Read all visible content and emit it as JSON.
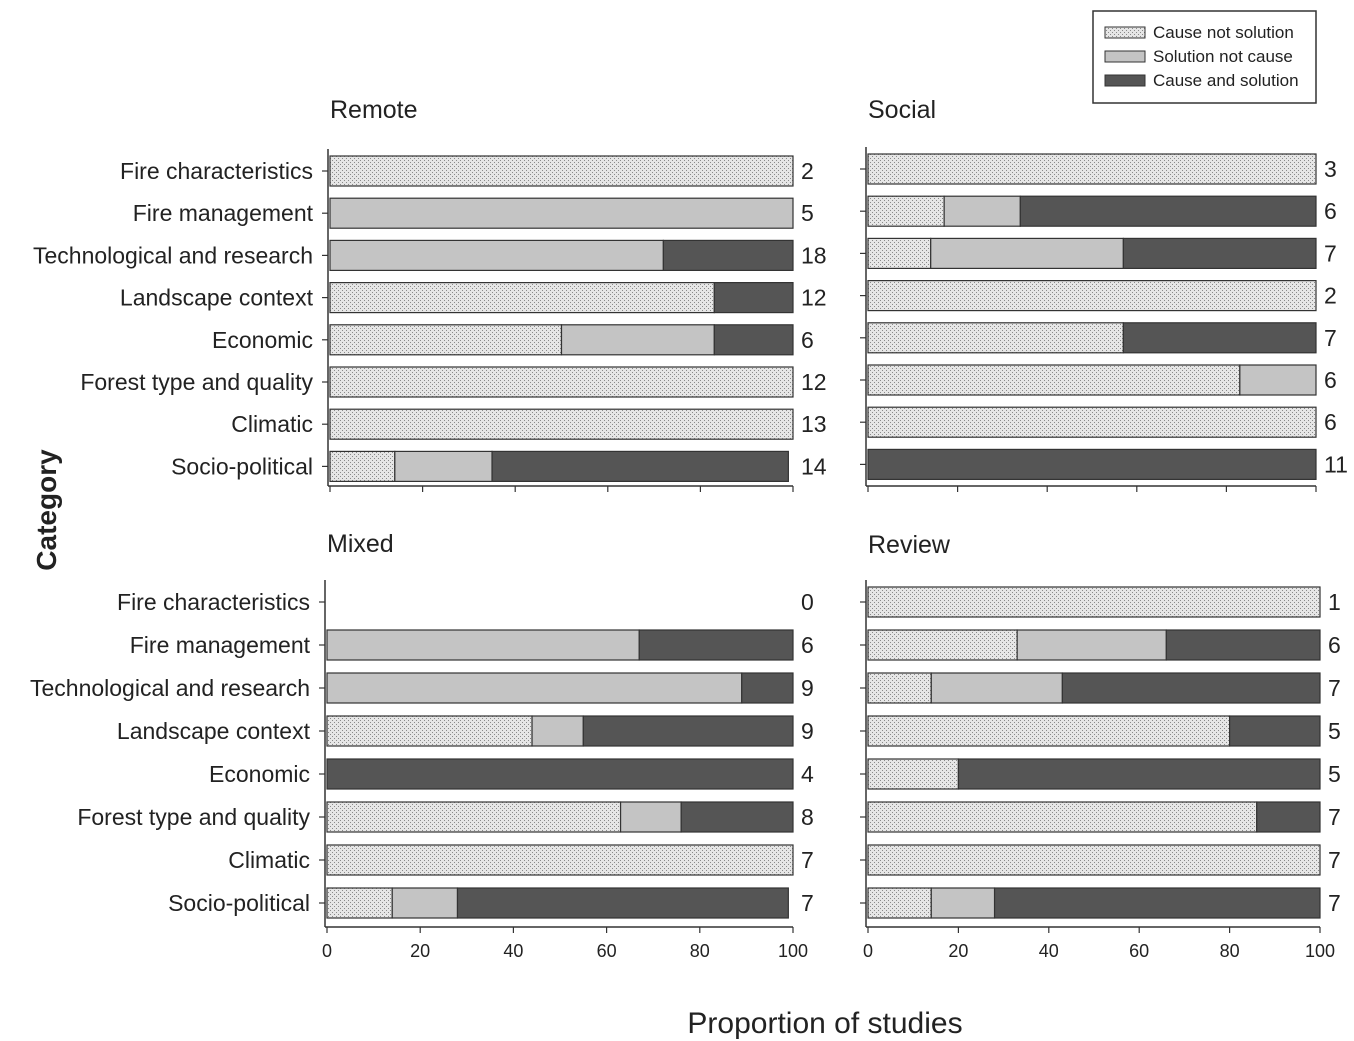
{
  "chart_data": {
    "type": "bar",
    "orientation": "horizontal",
    "stacked": true,
    "ylabel": "Category",
    "xlabel": "Proportion of studies",
    "xlim": [
      0,
      100
    ],
    "xticks": [
      0,
      20,
      40,
      60,
      80,
      100
    ],
    "legend": {
      "placement": "top-right",
      "items": [
        {
          "name": "Cause not solution",
          "color": "#e4e4e4",
          "pattern": "dotted"
        },
        {
          "name": "Solution not cause",
          "color": "#c4c4c4",
          "pattern": "solid"
        },
        {
          "name": "Cause and solution",
          "color": "#555555",
          "pattern": "solid"
        }
      ]
    },
    "categories": [
      "Fire characteristics",
      "Fire management",
      "Technological and research",
      "Landscape context",
      "Economic",
      "Forest type and quality",
      "Climatic",
      "Socio-political"
    ],
    "panels": [
      {
        "title": "Remote",
        "series": [
          {
            "name": "Cause not solution",
            "values": [
              100,
              0,
              0,
              83,
              50,
              100,
              100,
              14
            ]
          },
          {
            "name": "Solution not cause",
            "values": [
              0,
              100,
              72,
              0,
              33,
              0,
              0,
              21
            ]
          },
          {
            "name": "Cause and solution",
            "values": [
              0,
              0,
              28,
              17,
              17,
              0,
              0,
              64
            ]
          }
        ],
        "counts": [
          "2",
          "5",
          "18",
          "12",
          "6",
          "12",
          "13",
          "14"
        ]
      },
      {
        "title": "Social",
        "series": [
          {
            "name": "Cause not solution",
            "values": [
              100,
              17,
              14,
              100,
              57,
              83,
              100,
              0
            ]
          },
          {
            "name": "Solution not cause",
            "values": [
              0,
              17,
              43,
              0,
              0,
              17,
              0,
              0
            ]
          },
          {
            "name": "Cause and solution",
            "values": [
              0,
              66,
              43,
              0,
              43,
              0,
              0,
              100
            ]
          }
        ],
        "counts": [
          "3",
          "6",
          "7",
          "2",
          "7",
          "6",
          "6",
          "11"
        ]
      },
      {
        "title": "Mixed",
        "series": [
          {
            "name": "Cause not solution",
            "values": [
              0,
              0,
              0,
              44,
              0,
              63,
              100,
              14
            ]
          },
          {
            "name": "Solution not cause",
            "values": [
              0,
              67,
              89,
              11,
              0,
              13,
              0,
              14
            ]
          },
          {
            "name": "Cause and solution",
            "values": [
              0,
              33,
              11,
              45,
              100,
              24,
              0,
              71
            ]
          }
        ],
        "counts": [
          "0",
          "6",
          "9",
          "9",
          "4",
          "8",
          "7",
          "7"
        ]
      },
      {
        "title": "Review",
        "series": [
          {
            "name": "Cause not solution",
            "values": [
              100,
              33,
              14,
              80,
              20,
              86,
              100,
              14
            ]
          },
          {
            "name": "Solution not cause",
            "values": [
              0,
              33,
              29,
              0,
              0,
              0,
              0,
              14
            ]
          },
          {
            "name": "Cause and solution",
            "values": [
              0,
              34,
              57,
              20,
              80,
              14,
              0,
              72
            ]
          }
        ],
        "counts": [
          "1",
          "6",
          "7",
          "5",
          "5",
          "7",
          "7",
          "7"
        ]
      }
    ]
  }
}
